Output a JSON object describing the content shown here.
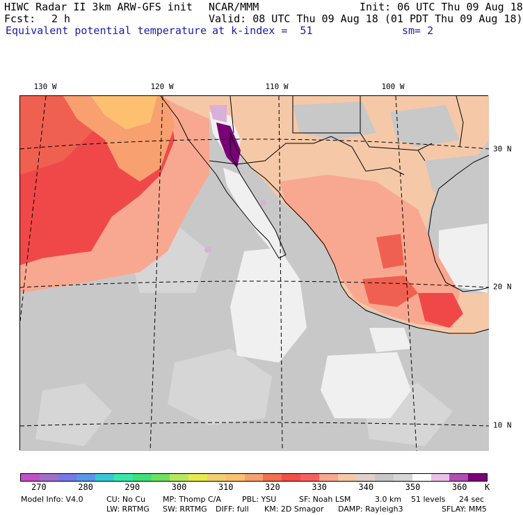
{
  "header": {
    "model": "HIWC Radar II 3km ARW-GFS init",
    "org": "NCAR/MMM",
    "init": "Init: 06 UTC Thu 09 Aug 18",
    "fcst_label": "Fcst:",
    "fcst_value": "2 h",
    "valid": "Valid: 08 UTC Thu 09 Aug 18 (01 PDT Thu 09 Aug 18)",
    "field": "Equivalent potential temperature",
    "level": "at k-index =  51",
    "smooth": "sm= 2"
  },
  "map": {
    "lon_labels": [
      "130 W",
      "120 W",
      "110 W",
      "100 W"
    ],
    "lat_labels": [
      "30 N",
      "20 N",
      "10 N"
    ],
    "colors": {
      "sea_low": "#c8c8c8",
      "sea_mid": "#d6d6d6",
      "land_base": "#f5c8a8",
      "warm_land": "#f8a890",
      "hot": "#f06050",
      "very_hot": "#f04848",
      "orange": "#f8a070",
      "yellow": "#fcc070",
      "white": "#f0f0f0",
      "purple": "#7a0078",
      "light_purple": "#d8b0d8",
      "grid": "#000000"
    }
  },
  "colorbar": {
    "colors": [
      "#c050c8",
      "#a070c8",
      "#7878e8",
      "#5898e8",
      "#38c8d8",
      "#38e8a8",
      "#40e078",
      "#70e060",
      "#b8e860",
      "#e8e850",
      "#f0d070",
      "#fcc070",
      "#f8a070",
      "#f07050",
      "#f05048",
      "#f86060",
      "#f8a890",
      "#f5c8a8",
      "#e0d0c8",
      "#c8c8c8",
      "#d6d6d6",
      "#ffffff",
      "#e8c0e8",
      "#b050b0",
      "#7a0078"
    ],
    "ticks": [
      "270",
      "280",
      "290",
      "300",
      "310",
      "320",
      "330",
      "340",
      "350",
      "360"
    ],
    "unit": "K"
  },
  "info": {
    "line1": [
      "Model Info: V4.0",
      "CU: No Cu",
      "MP: Thomp C/A",
      "PBL: YSU",
      "SF: Noah LSM",
      "3.0 km",
      "51 levels",
      "24 sec"
    ],
    "line2": [
      "LW: RRTMG",
      "SW: RRTMG",
      "DIFF: full",
      "KM: 2D Smagor",
      "DAMP: Rayleigh3",
      "SFLAY: MM5"
    ]
  }
}
